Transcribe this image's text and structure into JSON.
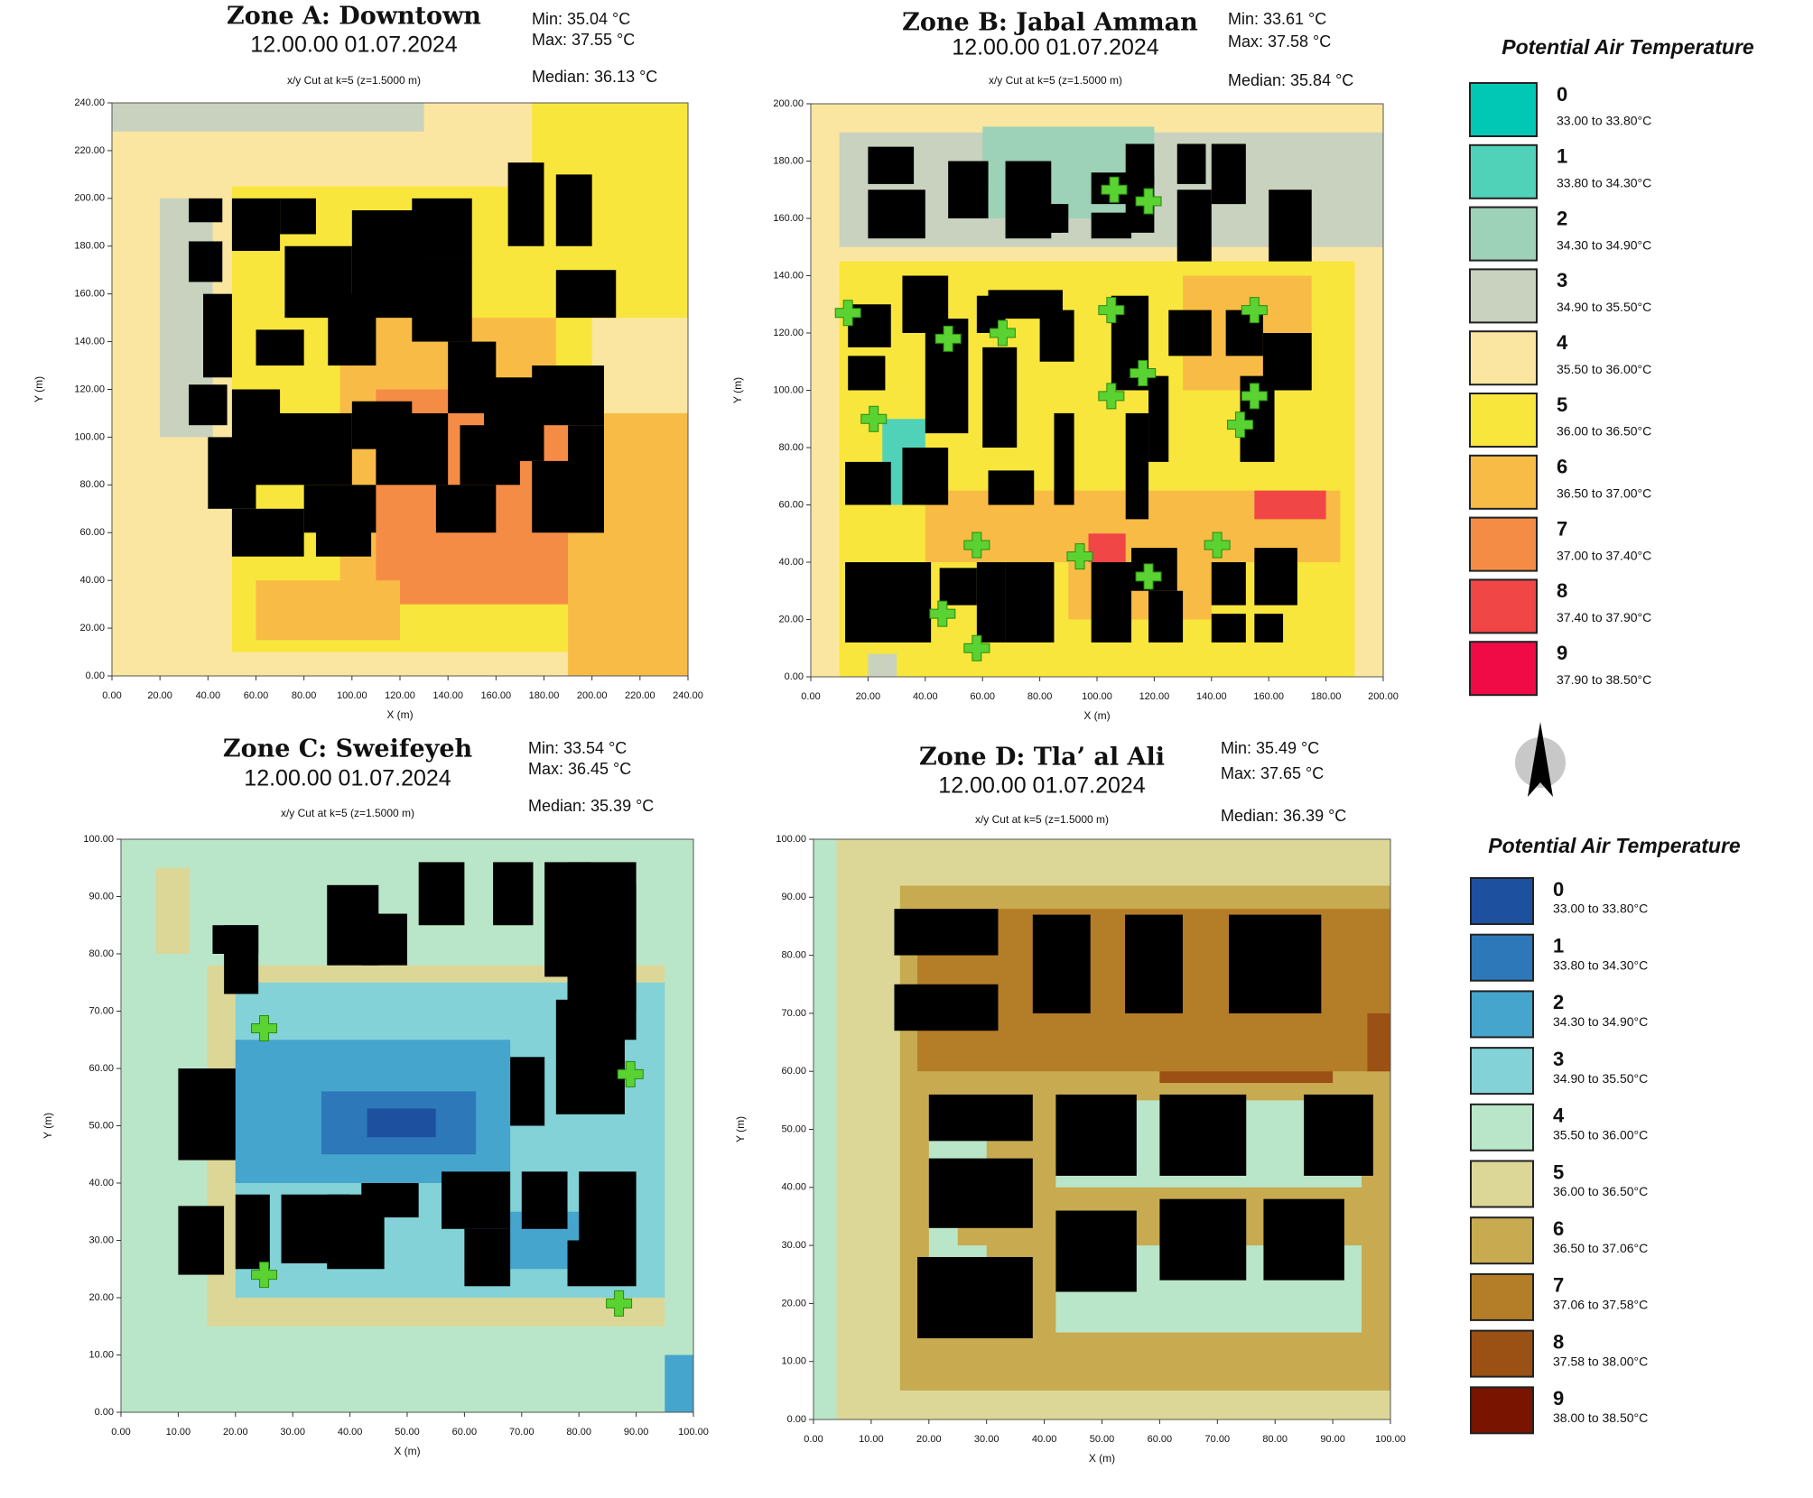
{
  "panels": [
    {
      "title": "Zone A: Downtown",
      "timestamp": "12.00.00 01.07.2024",
      "subtitle": "x/y Cut at k=5 (z=1.5000 m)",
      "min": "Min: 35.04 °C",
      "max": "Max: 37.55 °C",
      "median": "Median: 36.13 °C",
      "xlabel": "X (m)",
      "ylabel": "Y (m)",
      "xlim": [
        0,
        240
      ],
      "ylim": [
        0,
        240
      ],
      "xticks": [
        {
          "value": 0,
          "label": "0.00"
        },
        {
          "value": 20,
          "label": "20.00"
        },
        {
          "value": 40,
          "label": "40.00"
        },
        {
          "value": 60,
          "label": "60.00"
        },
        {
          "value": 80,
          "label": "80.00"
        },
        {
          "value": 100,
          "label": "100.00"
        },
        {
          "value": 120,
          "label": "120.00"
        },
        {
          "value": 140,
          "label": "140.00"
        },
        {
          "value": 160,
          "label": "160.00"
        },
        {
          "value": 180,
          "label": "180.00"
        },
        {
          "value": 200,
          "label": "200.00"
        },
        {
          "value": 220,
          "label": "220.00"
        },
        {
          "value": 240,
          "label": "240.00"
        }
      ],
      "yticks": [
        {
          "value": 0,
          "label": "0.00"
        },
        {
          "value": 20,
          "label": "20.00"
        },
        {
          "value": 40,
          "label": "40.00"
        },
        {
          "value": 60,
          "label": "60.00"
        },
        {
          "value": 80,
          "label": "80.00"
        },
        {
          "value": 100,
          "label": "100.00"
        },
        {
          "value": 120,
          "label": "120.00"
        },
        {
          "value": 140,
          "label": "140.00"
        },
        {
          "value": 160,
          "label": "160.00"
        },
        {
          "value": 180,
          "label": "180.00"
        },
        {
          "value": 200,
          "label": "200.00"
        },
        {
          "value": 220,
          "label": "220.00"
        },
        {
          "value": 240,
          "label": "240.00"
        }
      ]
    },
    {
      "title": "Zone B: Jabal Amman",
      "timestamp": "12.00.00 01.07.2024",
      "subtitle": "x/y Cut at k=5 (z=1.5000 m)",
      "min": "Min: 33.61 °C",
      "max": "Max: 37.58 °C",
      "median": "Median: 35.84 °C",
      "xlabel": "X (m)",
      "ylabel": "Y (m)",
      "xlim": [
        0,
        200
      ],
      "ylim": [
        0,
        200
      ],
      "xticks": [
        {
          "value": 0,
          "label": "0.00"
        },
        {
          "value": 20,
          "label": "20.00"
        },
        {
          "value": 40,
          "label": "40.00"
        },
        {
          "value": 60,
          "label": "60.00"
        },
        {
          "value": 80,
          "label": "80.00"
        },
        {
          "value": 100,
          "label": "100.00"
        },
        {
          "value": 120,
          "label": "120.00"
        },
        {
          "value": 140,
          "label": "140.00"
        },
        {
          "value": 160,
          "label": "160.00"
        },
        {
          "value": 180,
          "label": "180.00"
        },
        {
          "value": 200,
          "label": "200.00"
        }
      ],
      "yticks": [
        {
          "value": 0,
          "label": "0.00"
        },
        {
          "value": 20,
          "label": "20.00"
        },
        {
          "value": 40,
          "label": "40.00"
        },
        {
          "value": 60,
          "label": "60.00"
        },
        {
          "value": 80,
          "label": "80.00"
        },
        {
          "value": 100,
          "label": "100.00"
        },
        {
          "value": 120,
          "label": "120.00"
        },
        {
          "value": 140,
          "label": "140.00"
        },
        {
          "value": 160,
          "label": "160.00"
        },
        {
          "value": 180,
          "label": "180.00"
        },
        {
          "value": 200,
          "label": "200.00"
        }
      ]
    },
    {
      "title": "Zone C: Sweifeyeh",
      "timestamp": "12.00.00 01.07.2024",
      "subtitle": "x/y Cut at k=5 (z=1.5000 m)",
      "min": "Min: 33.54 °C",
      "max": "Max: 36.45 °C",
      "median": "Median: 35.39 °C",
      "xlabel": "X (m)",
      "ylabel": "Y (m)",
      "xlim": [
        0,
        100
      ],
      "ylim": [
        0,
        100
      ],
      "xticks": [
        {
          "value": 0,
          "label": "0.00"
        },
        {
          "value": 10,
          "label": "10.00"
        },
        {
          "value": 20,
          "label": "20.00"
        },
        {
          "value": 30,
          "label": "30.00"
        },
        {
          "value": 40,
          "label": "40.00"
        },
        {
          "value": 50,
          "label": "50.00"
        },
        {
          "value": 60,
          "label": "60.00"
        },
        {
          "value": 70,
          "label": "70.00"
        },
        {
          "value": 80,
          "label": "80.00"
        },
        {
          "value": 90,
          "label": "90.00"
        },
        {
          "value": 100,
          "label": "100.00"
        }
      ],
      "yticks": [
        {
          "value": 0,
          "label": "0.00"
        },
        {
          "value": 10,
          "label": "10.00"
        },
        {
          "value": 20,
          "label": "20.00"
        },
        {
          "value": 30,
          "label": "30.00"
        },
        {
          "value": 40,
          "label": "40.00"
        },
        {
          "value": 50,
          "label": "50.00"
        },
        {
          "value": 60,
          "label": "60.00"
        },
        {
          "value": 70,
          "label": "70.00"
        },
        {
          "value": 80,
          "label": "80.00"
        },
        {
          "value": 90,
          "label": "90.00"
        },
        {
          "value": 100,
          "label": "100.00"
        }
      ]
    },
    {
      "title": "Zone D: Tla’ al Ali",
      "timestamp": "12.00.00 01.07.2024",
      "subtitle": "x/y Cut at k=5 (z=1.5000 m)",
      "min": "Min: 35.49 °C",
      "max": "Max: 37.65 °C",
      "median": "Median: 36.39 °C",
      "xlabel": "X (m)",
      "ylabel": "Y (m)",
      "xlim": [
        0,
        100
      ],
      "ylim": [
        0,
        100
      ],
      "xticks": [
        {
          "value": 0,
          "label": "0.00"
        },
        {
          "value": 10,
          "label": "10.00"
        },
        {
          "value": 20,
          "label": "20.00"
        },
        {
          "value": 30,
          "label": "30.00"
        },
        {
          "value": 40,
          "label": "40.00"
        },
        {
          "value": 50,
          "label": "50.00"
        },
        {
          "value": 60,
          "label": "60.00"
        },
        {
          "value": 70,
          "label": "70.00"
        },
        {
          "value": 80,
          "label": "80.00"
        },
        {
          "value": 90,
          "label": "90.00"
        },
        {
          "value": 100,
          "label": "100.00"
        }
      ],
      "yticks": [
        {
          "value": 0,
          "label": "0.00"
        },
        {
          "value": 10,
          "label": "10.00"
        },
        {
          "value": 20,
          "label": "20.00"
        },
        {
          "value": 30,
          "label": "30.00"
        },
        {
          "value": 40,
          "label": "40.00"
        },
        {
          "value": 50,
          "label": "50.00"
        },
        {
          "value": 60,
          "label": "60.00"
        },
        {
          "value": 70,
          "label": "70.00"
        },
        {
          "value": 80,
          "label": "80.00"
        },
        {
          "value": 90,
          "label": "90.00"
        },
        {
          "value": 100,
          "label": "100.00"
        }
      ]
    }
  ],
  "legends": [
    {
      "title": "Potential Air Temperature",
      "items": [
        {
          "label": "0",
          "range": "33.00 to 33.80°C",
          "color": "#00c8b4"
        },
        {
          "label": "1",
          "range": "33.80 to 34.30°C",
          "color": "#50d2b8"
        },
        {
          "label": "2",
          "range": "34.30 to 34.90°C",
          "color": "#9ed2b8"
        },
        {
          "label": "3",
          "range": "34.90 to 35.50°C",
          "color": "#c8d2be"
        },
        {
          "label": "4",
          "range": "35.50 to 36.00°C",
          "color": "#fae6a0"
        },
        {
          "label": "5",
          "range": "36.00 to 36.50°C",
          "color": "#f8e63c"
        },
        {
          "label": "6",
          "range": "36.50 to 37.00°C",
          "color": "#f8bc46"
        },
        {
          "label": "7",
          "range": "37.00 to 37.40°C",
          "color": "#f58c46"
        },
        {
          "label": "8",
          "range": "37.40 to 37.90°C",
          "color": "#f04646"
        },
        {
          "label": "9",
          "range": "37.90 to 38.50°C",
          "color": "#f00a46"
        }
      ]
    },
    {
      "title": "Potential Air Temperature",
      "items": [
        {
          "label": "0",
          "range": "33.00 to 33.80°C",
          "color": "#1e50a0"
        },
        {
          "label": "1",
          "range": "33.80 to 34.30°C",
          "color": "#2d78b9"
        },
        {
          "label": "2",
          "range": "34.30 to 34.90°C",
          "color": "#46a5cd"
        },
        {
          "label": "3",
          "range": "34.90 to 35.50°C",
          "color": "#82d2d7"
        },
        {
          "label": "4",
          "range": "35.50 to 36.00°C",
          "color": "#b9e6c8"
        },
        {
          "label": "5",
          "range": "36.00 to 36.50°C",
          "color": "#dcd796"
        },
        {
          "label": "6",
          "range": "36.50 to 37.06°C",
          "color": "#c8aa50"
        },
        {
          "label": "7",
          "range": "37.06 to 37.58°C",
          "color": "#b47d28"
        },
        {
          "label": "8",
          "range": "37.58 to 38.00°C",
          "color": "#9b5014"
        },
        {
          "label": "9",
          "range": "38.00 to 38.50°C",
          "color": "#781400"
        }
      ]
    }
  ]
}
